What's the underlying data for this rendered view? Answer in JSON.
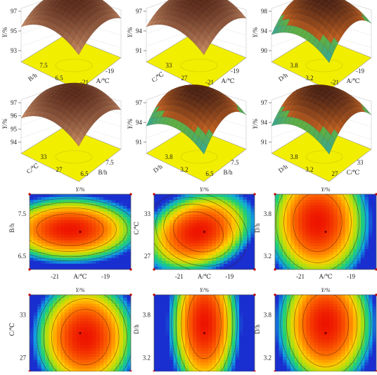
{
  "colors": {
    "floor": "#f2ee00",
    "floor_dark": "#d8d200",
    "contour_low": "#1030c0",
    "contour_mid": "#30c030",
    "contour_high": "#e81000",
    "surface_peak": "#5a2818",
    "surface_low": "#20a0c8",
    "center_point": "#c00000"
  },
  "chart_data": [
    {
      "type": "surface",
      "panel": "3d-AB",
      "zlabel": "Y/%",
      "zticks": [
        "97",
        "95",
        "93"
      ],
      "x": {
        "label": "A/℃",
        "ticks": [
          "-21",
          "-19"
        ]
      },
      "y": {
        "label": "B/h",
        "ticks": [
          "7.5",
          "6.5"
        ]
      },
      "scheme": "warm"
    },
    {
      "type": "surface",
      "panel": "3d-AC",
      "zlabel": "Y/%",
      "zticks": [
        "97",
        "94",
        "91"
      ],
      "x": {
        "label": "A/℃",
        "ticks": [
          "-21",
          "-19"
        ]
      },
      "y": {
        "label": "C/℃",
        "ticks": [
          "33",
          "27"
        ]
      },
      "scheme": "warm"
    },
    {
      "type": "surface",
      "panel": "3d-AD",
      "zlabel": "Y/%",
      "zticks": [
        "98",
        "94",
        "90"
      ],
      "x": {
        "label": "A/℃",
        "ticks": [
          "-21",
          "-19"
        ]
      },
      "y": {
        "label": "D/h",
        "ticks": [
          "3.8",
          "3.2"
        ]
      },
      "scheme": "mixed"
    },
    {
      "type": "surface",
      "panel": "3d-BC",
      "zlabel": "Y/%",
      "zticks": [
        "97",
        "96",
        "95",
        "94"
      ],
      "x": {
        "label": "B/h",
        "ticks": [
          "6.5",
          "7.5"
        ]
      },
      "y": {
        "label": "C/℃",
        "ticks": [
          "33",
          "27"
        ]
      },
      "scheme": "warm"
    },
    {
      "type": "surface",
      "panel": "3d-BD",
      "zlabel": "Y/%",
      "zticks": [
        "97",
        "94",
        "91"
      ],
      "x": {
        "label": "B/h",
        "ticks": [
          "6.5",
          "7.5"
        ]
      },
      "y": {
        "label": "D/h",
        "ticks": [
          "3.8",
          "3.2"
        ]
      },
      "scheme": "mixed"
    },
    {
      "type": "surface",
      "panel": "3d-CD",
      "zlabel": "Y/%",
      "zticks": [
        "97",
        "94",
        "91"
      ],
      "x": {
        "label": "C/℃",
        "ticks": [
          "27",
          "33"
        ]
      },
      "y": {
        "label": "D/h",
        "ticks": [
          "3.8",
          "3.2"
        ]
      },
      "scheme": "mixed"
    },
    {
      "type": "heatmap",
      "panel": "contour-AB",
      "title": "Y/%",
      "xlabel": "A/℃",
      "ylabel": "B/h",
      "xticks": [
        "-21",
        "-19"
      ],
      "yticks": [
        "7.5",
        "6.5"
      ],
      "center": [
        0.4,
        0.47
      ],
      "scale": [
        1.1,
        0.7
      ],
      "tilt": 0
    },
    {
      "type": "heatmap",
      "panel": "contour-AC",
      "title": "Y/%",
      "xlabel": "A/℃",
      "ylabel": "C/℃",
      "xticks": [
        "-21",
        "-19"
      ],
      "yticks": [
        "33",
        "27"
      ],
      "center": [
        0.44,
        0.5
      ],
      "scale": [
        0.85,
        0.85
      ],
      "tilt": 0.5
    },
    {
      "type": "heatmap",
      "panel": "contour-AD",
      "title": "Y/%",
      "xlabel": "A/℃",
      "ylabel": "D/h",
      "xticks": [
        "-21",
        "-19"
      ],
      "yticks": [
        "3.8",
        "3.2"
      ],
      "center": [
        0.42,
        0.37
      ],
      "scale": [
        0.8,
        1.3
      ],
      "tilt": 0
    },
    {
      "type": "heatmap",
      "panel": "contour-BC",
      "title": "Y/%",
      "xlabel": "",
      "ylabel": "C/℃",
      "xticks": [],
      "yticks": [
        "33",
        "27"
      ],
      "center": [
        0.55,
        0.55
      ],
      "scale": [
        0.8,
        1.2
      ],
      "tilt": 0
    },
    {
      "type": "heatmap",
      "panel": "contour-BD",
      "title": "Y/%",
      "xlabel": "",
      "ylabel": "D/h",
      "xticks": [],
      "yticks": [
        "3.8",
        "3.2"
      ],
      "center": [
        0.5,
        0.38
      ],
      "scale": [
        0.55,
        1.5
      ],
      "tilt": 0
    },
    {
      "type": "heatmap",
      "panel": "contour-CD",
      "title": "Y/%",
      "xlabel": "",
      "ylabel": "D/h",
      "xticks": [],
      "yticks": [
        "3.8",
        "3.2"
      ],
      "center": [
        0.5,
        0.38
      ],
      "scale": [
        0.75,
        1.35
      ],
      "tilt": 0
    }
  ]
}
